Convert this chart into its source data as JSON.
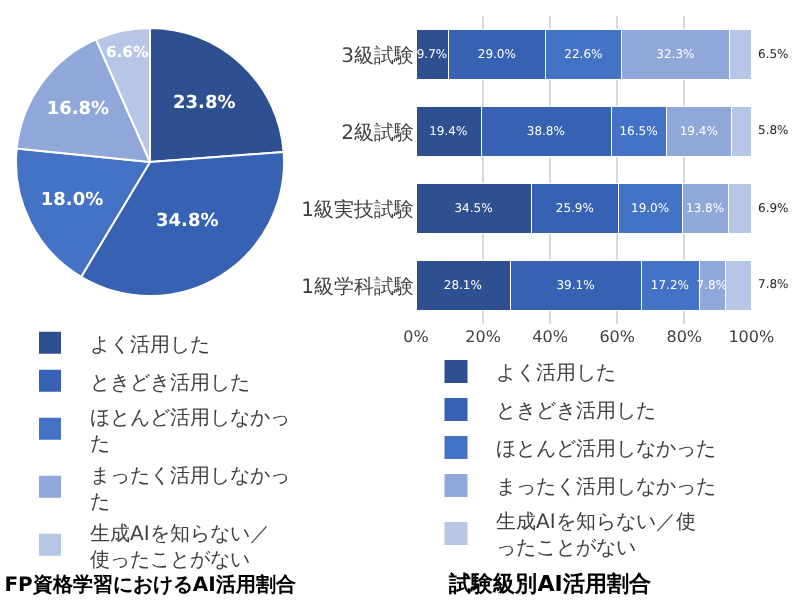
{
  "chart_data": [
    {
      "type": "pie",
      "title": "FP資格学習におけるAI活用割合",
      "categories": [
        "よく活用した",
        "ときどき活用した",
        "ほとんど活用しなかった",
        "まったく活用しなかった",
        "生成AIを知らない／使ったことがない"
      ],
      "values": [
        23.8,
        34.8,
        18.0,
        16.8,
        6.6
      ],
      "value_labels": [
        "23.8%",
        "34.8%",
        "18.0%",
        "16.8%",
        "6.6%"
      ],
      "colors": [
        "#2f5090",
        "#3762b4",
        "#4472c4",
        "#8fa7d9",
        "#b7c6e7"
      ],
      "legend": "bottom"
    },
    {
      "type": "bar",
      "orientation": "horizontal",
      "stacked": true,
      "title": "試験級別AI活用割合",
      "categories": [
        "3級試験",
        "2級試験",
        "1級実技試験",
        "1級学科試験"
      ],
      "xlim": [
        0,
        100.2
      ],
      "xticks": [
        {
          "value": 0,
          "label": "0%"
        },
        {
          "value": 20,
          "label": "20%"
        },
        {
          "value": 40,
          "label": "40%"
        },
        {
          "value": 60,
          "label": "60%"
        },
        {
          "value": 80,
          "label": "80%"
        },
        {
          "value": 100,
          "label": "100%"
        }
      ],
      "grid": "x",
      "legend": "bottom",
      "series": [
        {
          "name": "よく活用した",
          "color": "#2f5090",
          "values": [
            9.7,
            19.4,
            34.5,
            28.1
          ],
          "value_labels": [
            "9.7%",
            "19.4%",
            "34.5%",
            "28.1%"
          ]
        },
        {
          "name": "ときどき活用した",
          "color": "#3762b4",
          "values": [
            29.0,
            38.8,
            25.9,
            39.1
          ],
          "value_labels": [
            "29.0%",
            "38.8%",
            "25.9%",
            "39.1%"
          ]
        },
        {
          "name": "ほとんど活用しなかった",
          "color": "#4472c4",
          "values": [
            22.6,
            16.5,
            19.0,
            17.2
          ],
          "value_labels": [
            "22.6%",
            "16.5%",
            "19.0%",
            "17.2%"
          ]
        },
        {
          "name": "まったく活用しなかった",
          "color": "#8fa7d9",
          "values": [
            32.3,
            19.4,
            13.8,
            7.8
          ],
          "value_labels": [
            "32.3%",
            "19.4%",
            "13.8%",
            "7.8%"
          ]
        },
        {
          "name": "生成AIを知らない／使ったことがない",
          "color": "#b7c6e7",
          "values": [
            6.5,
            5.8,
            6.9,
            7.8
          ],
          "value_labels": [
            "6.5%",
            "5.8%",
            "6.9%",
            "7.8%"
          ]
        }
      ]
    }
  ]
}
